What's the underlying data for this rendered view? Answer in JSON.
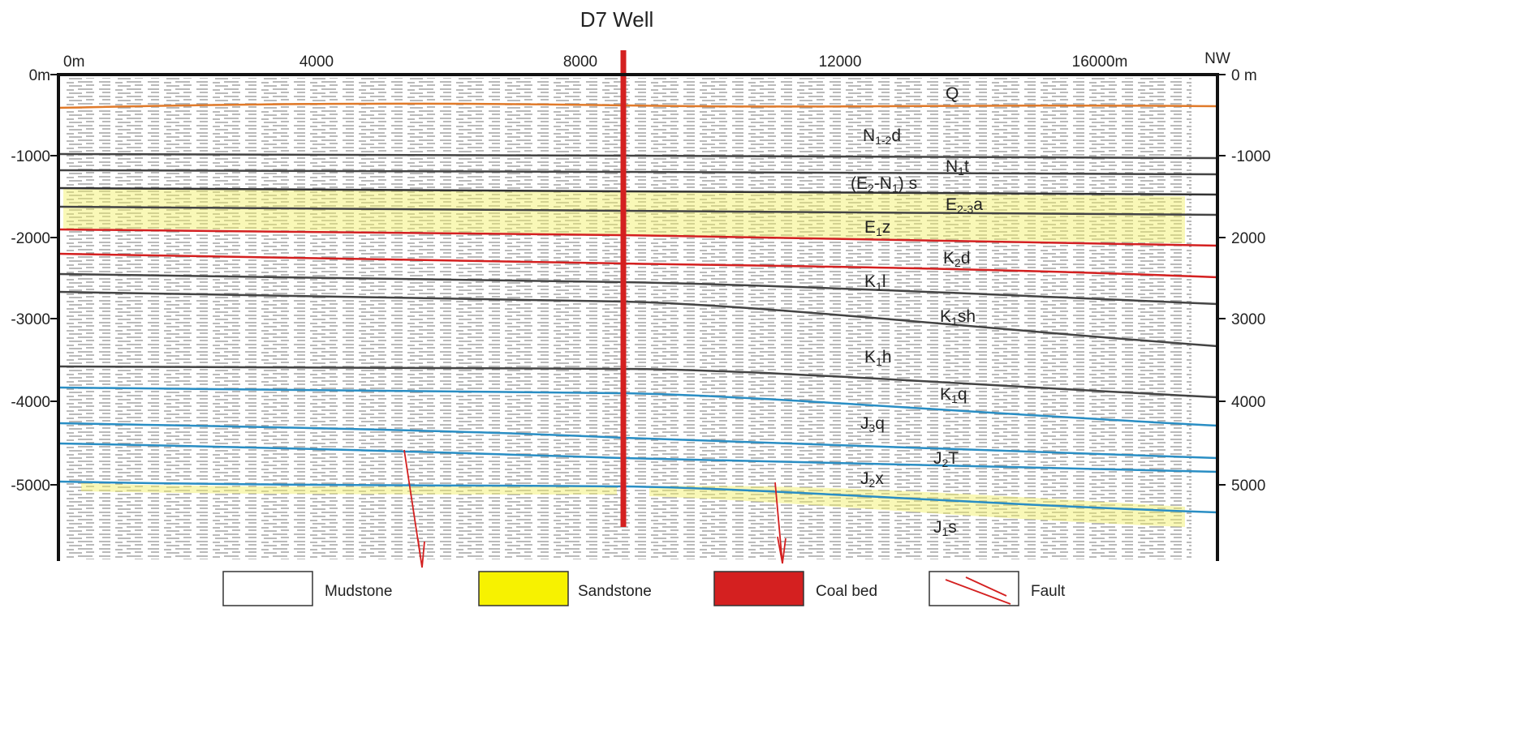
{
  "title": "D7 Well",
  "top_axis": {
    "labels": [
      "0m",
      "4000",
      "8000",
      "12000",
      "16000m"
    ],
    "direction": "NW"
  },
  "left_axis": {
    "labels": [
      "0m",
      "-1000",
      "-2000",
      "-3000",
      "-4000",
      "-5000"
    ]
  },
  "right_axis": {
    "labels": [
      "0 m",
      "-1000",
      "2000",
      "3000",
      "4000",
      "5000"
    ]
  },
  "formations": [
    {
      "parts": [
        "Q"
      ]
    },
    {
      "parts": [
        "N",
        "1-2",
        "d"
      ]
    },
    {
      "parts": [
        "N",
        "1",
        "t"
      ]
    },
    {
      "parts": [
        "(E",
        "2",
        "-N",
        "1",
        ") s"
      ]
    },
    {
      "parts": [
        "E",
        "2-3",
        "a"
      ]
    },
    {
      "parts": [
        "E",
        "1",
        "z"
      ]
    },
    {
      "parts": [
        "K",
        "2",
        "d"
      ]
    },
    {
      "parts": [
        "K",
        "1",
        "l"
      ]
    },
    {
      "parts": [
        "K",
        "1",
        "sh"
      ]
    },
    {
      "parts": [
        "K",
        "1",
        "h"
      ]
    },
    {
      "parts": [
        "K",
        "1",
        "q"
      ]
    },
    {
      "parts": [
        "J",
        "3",
        "q"
      ]
    },
    {
      "parts": [
        "J",
        "2",
        "T"
      ]
    },
    {
      "parts": [
        "J",
        "2",
        "x"
      ]
    },
    {
      "parts": [
        "J",
        "1",
        "s"
      ]
    }
  ],
  "legend": [
    {
      "label": "Mudstone"
    },
    {
      "label": "Sandstone"
    },
    {
      "label": "Coal  bed"
    },
    {
      "label": "Fault"
    }
  ]
}
